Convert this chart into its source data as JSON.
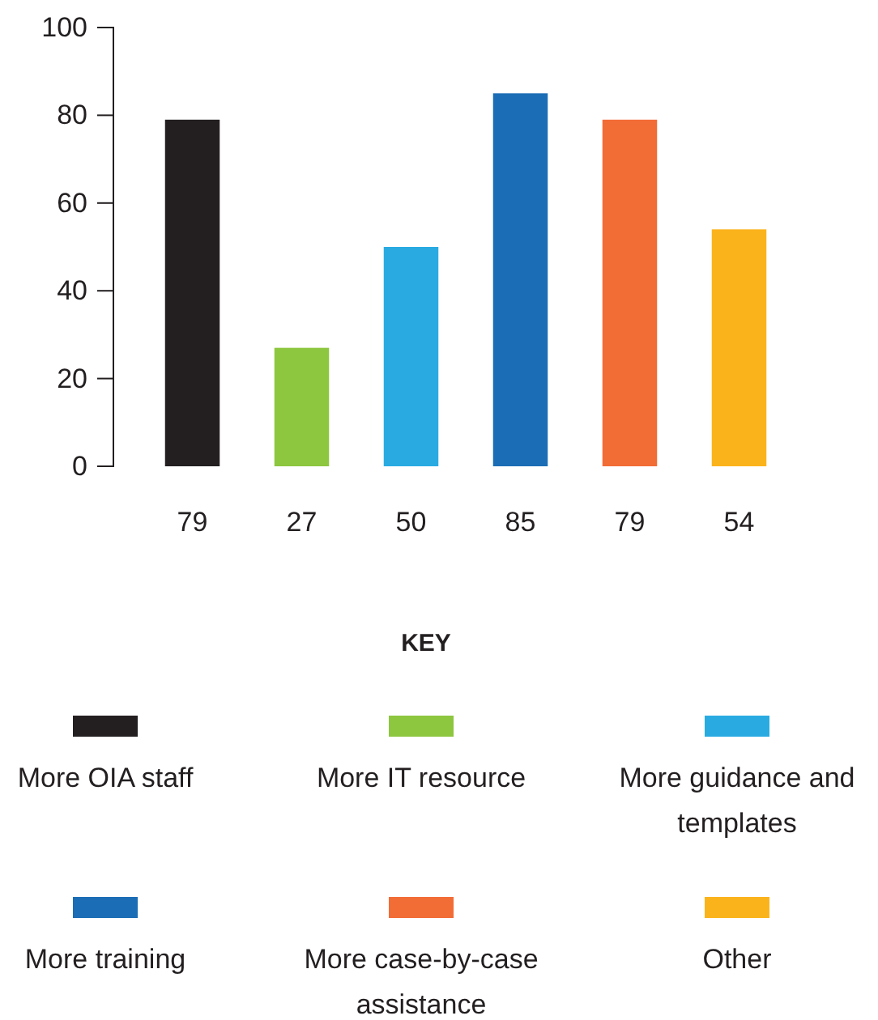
{
  "chart_data": {
    "type": "bar",
    "stacked": true,
    "categories": [
      null,
      null,
      null,
      null,
      null,
      null
    ],
    "series": [
      {
        "name": "More OIA staff",
        "color": "#231f20",
        "values": [
          79,
          null,
          null,
          null,
          null,
          null
        ]
      },
      {
        "name": "More IT resource",
        "color": "#8dc63f",
        "values": [
          null,
          27,
          null,
          null,
          null,
          null
        ]
      },
      {
        "name": "More guidance and templates",
        "color": "#29abe2",
        "values": [
          null,
          null,
          50,
          null,
          null,
          null
        ]
      },
      {
        "name": "More training",
        "color": "#1b6db5",
        "values": [
          null,
          null,
          null,
          85,
          null,
          null
        ]
      },
      {
        "name": "More case-by-case assistance",
        "color": "#f26c36",
        "values": [
          null,
          null,
          null,
          null,
          79,
          null
        ]
      },
      {
        "name": "Other",
        "color": "#fbb31b",
        "values": [
          null,
          null,
          null,
          null,
          null,
          54
        ]
      }
    ],
    "ylim": [
      0,
      100
    ],
    "yticks": [
      0,
      20,
      40,
      60,
      80,
      100
    ],
    "data_labels": true,
    "tick_labels": "y",
    "legend": "bottom",
    "legend_title": "KEY"
  }
}
